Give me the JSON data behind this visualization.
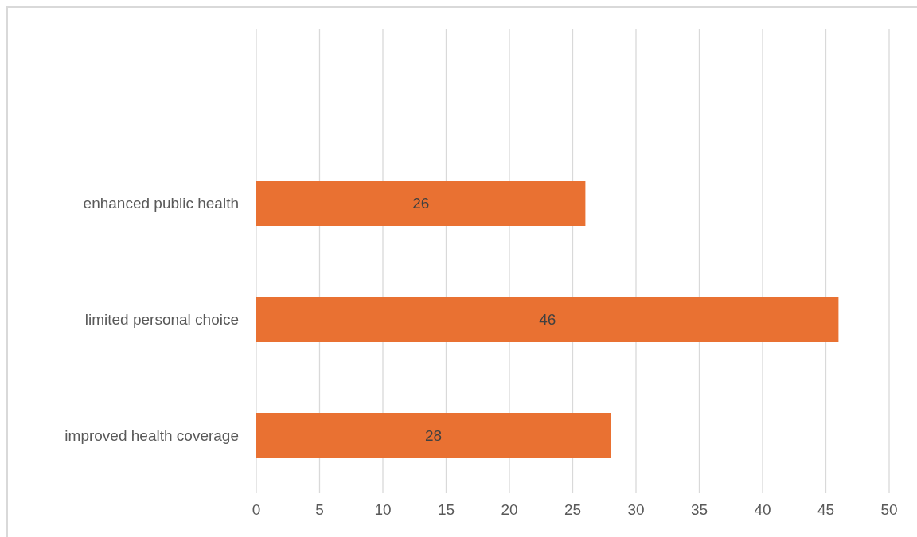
{
  "chart_data": {
    "type": "bar",
    "orientation": "horizontal",
    "categories": [
      null,
      "enhanced public health",
      "limited personal choice",
      "improved health coverage"
    ],
    "values": [
      null,
      26,
      46,
      28
    ],
    "color": "#e97132",
    "xlim": [
      0,
      50
    ],
    "xticks": [
      0,
      5,
      10,
      15,
      20,
      25,
      30,
      35,
      40,
      45,
      50
    ],
    "grid": "x",
    "data_labels": true
  }
}
